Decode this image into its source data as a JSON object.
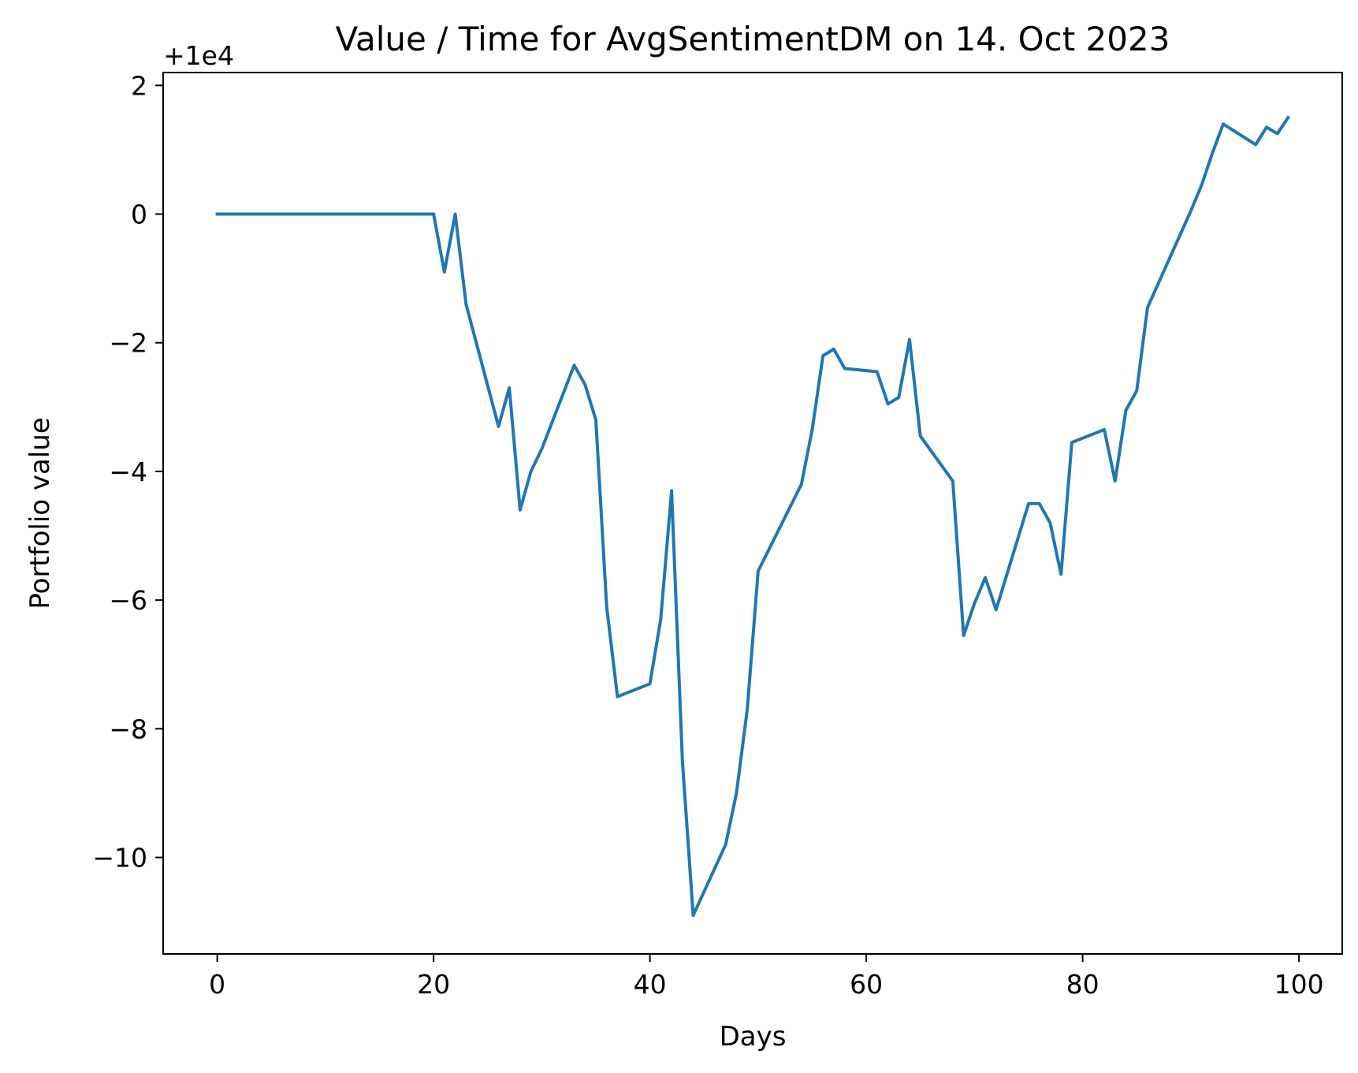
{
  "chart_data": {
    "type": "line",
    "title": "Value / Time for AvgSentimentDM on 14. Oct 2023",
    "xlabel": "Days",
    "ylabel": "Portfolio value",
    "y_offset_label": "+1e4",
    "xlim": [
      -5,
      104
    ],
    "ylim": [
      -11.5,
      2.2
    ],
    "x_ticks": [
      0,
      20,
      40,
      60,
      80,
      100
    ],
    "x_tick_labels": [
      "0",
      "20",
      "40",
      "60",
      "80",
      "100"
    ],
    "y_ticks": [
      2,
      0,
      -2,
      -4,
      -6,
      -8,
      -10
    ],
    "y_tick_labels": [
      "2",
      "0",
      "−2",
      "−4",
      "−6",
      "−8",
      "−10"
    ],
    "grid": false,
    "series": [
      {
        "color": "#1f77b4",
        "x": [
          0,
          20,
          21,
          22,
          23,
          26,
          27,
          28,
          29,
          30,
          33,
          34,
          35,
          36,
          37,
          40,
          41,
          42,
          43,
          44,
          47,
          48,
          49,
          50,
          54,
          55,
          56,
          57,
          58,
          61,
          62,
          63,
          64,
          65,
          68,
          69,
          70,
          71,
          72,
          75,
          76,
          77,
          78,
          79,
          82,
          83,
          84,
          85,
          86,
          90,
          91,
          92,
          93,
          96,
          97,
          98,
          99
        ],
        "y": [
          0,
          0,
          -0.9,
          0,
          -1.4,
          -3.3,
          -2.7,
          -4.6,
          -4.0,
          -3.65,
          -2.35,
          -2.65,
          -3.2,
          -6.1,
          -7.5,
          -7.3,
          -6.3,
          -4.3,
          -8.5,
          -10.9,
          -9.8,
          -9.0,
          -7.7,
          -5.55,
          -4.2,
          -3.35,
          -2.2,
          -2.1,
          -2.4,
          -2.45,
          -2.95,
          -2.85,
          -1.95,
          -3.45,
          -4.15,
          -6.55,
          -6.05,
          -5.65,
          -6.15,
          -4.5,
          -4.5,
          -4.8,
          -5.6,
          -3.55,
          -3.35,
          -4.15,
          -3.05,
          -2.75,
          -1.45,
          0.05,
          0.45,
          0.95,
          1.4,
          1.08,
          1.35,
          1.25,
          1.5
        ]
      }
    ]
  }
}
